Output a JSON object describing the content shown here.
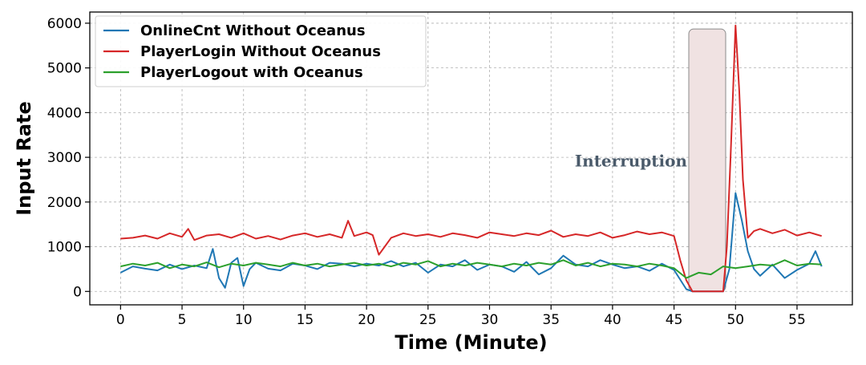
{
  "chart_data": {
    "type": "line",
    "xlabel": "Time (Minute)",
    "ylabel": "Input Rate",
    "xlim": [
      -2.5,
      59.5
    ],
    "ylim": [
      -300,
      6250
    ],
    "xticks": [
      0,
      5,
      10,
      15,
      20,
      25,
      30,
      35,
      40,
      45,
      50,
      55
    ],
    "yticks": [
      0,
      1000,
      2000,
      3000,
      4000,
      5000,
      6000
    ],
    "grid": true,
    "legend_position": "top-left",
    "annotation": {
      "text": "Interruption",
      "x_start": 46.2,
      "x_end": 49.2,
      "y_top": 5870,
      "label_x": 41.5,
      "label_y": 2800,
      "fill": "#f0e2e2"
    },
    "series": [
      {
        "name": "OnlineCnt Without Oceanus",
        "color": "#1f77b4",
        "x": [
          0,
          1,
          2,
          3,
          4,
          5,
          6,
          7,
          7.5,
          8,
          8.5,
          9,
          9.5,
          10,
          10.5,
          11,
          12,
          13,
          14,
          15,
          16,
          17,
          18,
          19,
          20,
          21,
          22,
          23,
          24,
          25,
          26,
          27,
          28,
          29,
          30,
          31,
          32,
          33,
          34,
          35,
          36,
          37,
          38,
          39,
          40,
          41,
          42,
          43,
          44,
          45,
          46,
          46.5,
          47,
          48,
          49,
          49.5,
          50,
          50.5,
          51,
          51.5,
          52,
          53,
          54,
          55,
          56,
          56.5,
          57
        ],
        "values": [
          420,
          560,
          510,
          470,
          600,
          500,
          580,
          520,
          950,
          300,
          80,
          640,
          750,
          120,
          500,
          640,
          510,
          470,
          620,
          580,
          500,
          640,
          620,
          560,
          620,
          580,
          680,
          560,
          640,
          420,
          600,
          560,
          700,
          480,
          600,
          560,
          440,
          660,
          380,
          520,
          800,
          600,
          560,
          700,
          600,
          520,
          560,
          460,
          620,
          480,
          50,
          0,
          0,
          0,
          0,
          500,
          2200,
          1600,
          900,
          500,
          350,
          600,
          300,
          480,
          620,
          900,
          560
        ]
      },
      {
        "name": "PlayerLogin Without Oceanus",
        "color": "#d62728",
        "x": [
          0,
          1,
          2,
          3,
          4,
          5,
          5.5,
          6,
          7,
          8,
          9,
          10,
          11,
          12,
          13,
          14,
          15,
          16,
          17,
          18,
          18.5,
          19,
          20,
          20.5,
          21,
          22,
          23,
          24,
          25,
          26,
          27,
          28,
          29,
          30,
          31,
          32,
          33,
          34,
          35,
          36,
          37,
          38,
          39,
          40,
          41,
          42,
          43,
          44,
          45,
          45.5,
          46,
          46.5,
          47,
          48,
          49,
          49.3,
          49.6,
          50,
          50.3,
          50.6,
          51,
          51.5,
          52,
          53,
          54,
          55,
          56,
          57
        ],
        "values": [
          1180,
          1200,
          1250,
          1180,
          1300,
          1220,
          1400,
          1150,
          1250,
          1280,
          1200,
          1300,
          1180,
          1240,
          1160,
          1250,
          1300,
          1220,
          1280,
          1200,
          1580,
          1240,
          1320,
          1260,
          820,
          1200,
          1300,
          1240,
          1280,
          1220,
          1300,
          1260,
          1200,
          1320,
          1280,
          1240,
          1300,
          1260,
          1360,
          1220,
          1280,
          1240,
          1320,
          1200,
          1260,
          1340,
          1280,
          1320,
          1240,
          700,
          250,
          0,
          0,
          0,
          0,
          1000,
          3000,
          5950,
          4500,
          2500,
          1200,
          1350,
          1400,
          1300,
          1380,
          1250,
          1320,
          1240
        ]
      },
      {
        "name": "PlayerLogout with Oceanus",
        "color": "#2ca02c",
        "x": [
          0,
          1,
          2,
          3,
          4,
          5,
          6,
          7,
          8,
          9,
          10,
          11,
          12,
          13,
          14,
          15,
          16,
          17,
          18,
          19,
          20,
          21,
          22,
          23,
          24,
          25,
          26,
          27,
          28,
          29,
          30,
          31,
          32,
          33,
          34,
          35,
          36,
          37,
          38,
          39,
          40,
          41,
          42,
          43,
          44,
          45,
          46,
          47,
          48,
          49,
          50,
          51,
          52,
          53,
          54,
          55,
          56,
          57
        ],
        "values": [
          560,
          620,
          580,
          640,
          520,
          600,
          560,
          650,
          540,
          620,
          580,
          640,
          600,
          560,
          640,
          580,
          620,
          560,
          600,
          640,
          580,
          620,
          560,
          640,
          600,
          680,
          560,
          620,
          580,
          640,
          600,
          560,
          620,
          580,
          640,
          600,
          700,
          580,
          640,
          560,
          620,
          600,
          560,
          620,
          580,
          520,
          300,
          420,
          380,
          560,
          520,
          560,
          600,
          580,
          700,
          580,
          620,
          600
        ]
      }
    ]
  }
}
